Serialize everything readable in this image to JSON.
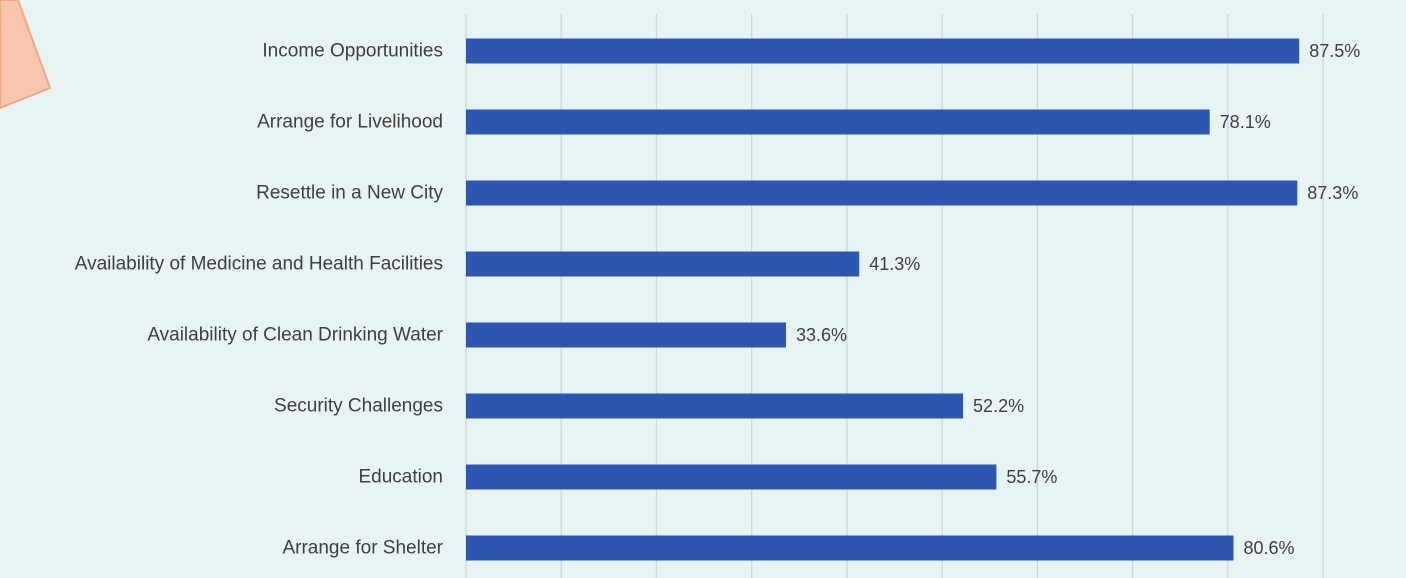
{
  "chart_data": {
    "type": "bar",
    "orientation": "horizontal",
    "categories": [
      "Income Opportunities",
      "Arrange for Livelihood",
      "Resettle in a New City",
      "Availability of Medicine and Health Facilities",
      "Availability of Clean Drinking Water",
      "Security Challenges",
      "Education",
      "Arrange for Shelter"
    ],
    "values": [
      87.5,
      78.1,
      87.3,
      41.3,
      33.6,
      52.2,
      55.7,
      80.6
    ],
    "value_labels": [
      "87.5%",
      "78.1%",
      "87.3%",
      "41.3%",
      "33.6%",
      "52.2%",
      "55.7%",
      "80.6%"
    ],
    "xlim": [
      0,
      90
    ],
    "gridlines": true,
    "legend": "none",
    "colors": {
      "bar": "#2c56b0",
      "background": "#e8f4f4",
      "grid": "#cfd6d8",
      "decoration": "#f7c6ad",
      "decoration_border": "#f2a982"
    }
  }
}
